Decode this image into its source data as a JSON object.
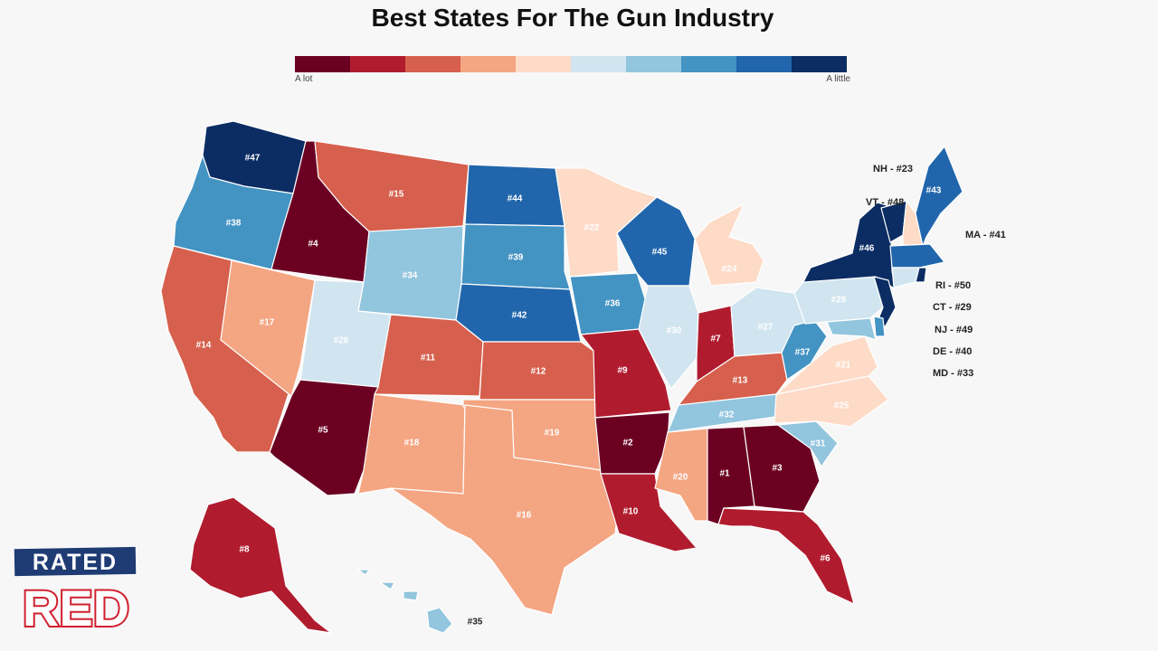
{
  "title": "Best States For The Gun Industry",
  "legend": {
    "low_label": "A lot",
    "high_label": "A little",
    "colors": [
      "#6b0023",
      "#b01c2e",
      "#d6604d",
      "#f4a582",
      "#fddbc7",
      "#d1e5f0",
      "#92c5de",
      "#4393c3",
      "#2166ac",
      "#0c2d63"
    ]
  },
  "states": [
    {
      "id": "WA",
      "rank": "#47",
      "color": "#0c2d63"
    },
    {
      "id": "OR",
      "rank": "#38",
      "color": "#4393c3"
    },
    {
      "id": "CA",
      "rank": "#14",
      "color": "#d6604d"
    },
    {
      "id": "ID",
      "rank": "#4",
      "color": "#6b0023"
    },
    {
      "id": "NV",
      "rank": "#17",
      "color": "#f4a582"
    },
    {
      "id": "MT",
      "rank": "#15",
      "color": "#d6604d"
    },
    {
      "id": "WY",
      "rank": "#34",
      "color": "#92c5de"
    },
    {
      "id": "UT",
      "rank": "#26",
      "color": "#d1e5f0"
    },
    {
      "id": "AZ",
      "rank": "#5",
      "color": "#6b0023"
    },
    {
      "id": "CO",
      "rank": "#11",
      "color": "#d6604d"
    },
    {
      "id": "NM",
      "rank": "#18",
      "color": "#f4a582"
    },
    {
      "id": "ND",
      "rank": "#44",
      "color": "#2166ac"
    },
    {
      "id": "SD",
      "rank": "#39",
      "color": "#4393c3"
    },
    {
      "id": "NE",
      "rank": "#42",
      "color": "#2166ac"
    },
    {
      "id": "KS",
      "rank": "#12",
      "color": "#d6604d"
    },
    {
      "id": "OK",
      "rank": "#19",
      "color": "#f4a582"
    },
    {
      "id": "TX",
      "rank": "#16",
      "color": "#f4a582"
    },
    {
      "id": "MN",
      "rank": "#22",
      "color": "#fddbc7"
    },
    {
      "id": "IA",
      "rank": "#36",
      "color": "#4393c3"
    },
    {
      "id": "MO",
      "rank": "#9",
      "color": "#b01c2e"
    },
    {
      "id": "AR",
      "rank": "#2",
      "color": "#6b0023"
    },
    {
      "id": "LA",
      "rank": "#10",
      "color": "#b01c2e"
    },
    {
      "id": "WI",
      "rank": "#45",
      "color": "#2166ac"
    },
    {
      "id": "IL",
      "rank": "#30",
      "color": "#d1e5f0"
    },
    {
      "id": "MI",
      "rank": "#24",
      "color": "#fddbc7"
    },
    {
      "id": "IN",
      "rank": "#7",
      "color": "#b01c2e"
    },
    {
      "id": "OH",
      "rank": "#27",
      "color": "#d1e5f0"
    },
    {
      "id": "KY",
      "rank": "#13",
      "color": "#d6604d"
    },
    {
      "id": "TN",
      "rank": "#32",
      "color": "#92c5de"
    },
    {
      "id": "MS",
      "rank": "#20",
      "color": "#f4a582"
    },
    {
      "id": "AL",
      "rank": "#1",
      "color": "#6b0023"
    },
    {
      "id": "GA",
      "rank": "#3",
      "color": "#6b0023"
    },
    {
      "id": "FL",
      "rank": "#6",
      "color": "#b01c2e"
    },
    {
      "id": "SC",
      "rank": "#31",
      "color": "#92c5de"
    },
    {
      "id": "NC",
      "rank": "#25",
      "color": "#fddbc7"
    },
    {
      "id": "VA",
      "rank": "#21",
      "color": "#fddbc7"
    },
    {
      "id": "WV",
      "rank": "#37",
      "color": "#4393c3"
    },
    {
      "id": "PA",
      "rank": "#28",
      "color": "#d1e5f0"
    },
    {
      "id": "NY",
      "rank": "#46",
      "color": "#0c2d63"
    },
    {
      "id": "VT",
      "rank": "",
      "color": "#0c2d63"
    },
    {
      "id": "NH",
      "rank": "",
      "color": "#fddbc7"
    },
    {
      "id": "ME",
      "rank": "#43",
      "color": "#2166ac"
    },
    {
      "id": "MA",
      "rank": "",
      "color": "#2166ac"
    },
    {
      "id": "CT",
      "rank": "",
      "color": "#d1e5f0"
    },
    {
      "id": "RI",
      "rank": "",
      "color": "#0c2d63"
    },
    {
      "id": "NJ",
      "rank": "",
      "color": "#0c2d63"
    },
    {
      "id": "DE",
      "rank": "",
      "color": "#4393c3"
    },
    {
      "id": "MD",
      "rank": "",
      "color": "#92c5de"
    },
    {
      "id": "AK",
      "rank": "#8",
      "color": "#b01c2e"
    },
    {
      "id": "HI",
      "rank": "#35",
      "color": "#92c5de"
    }
  ],
  "callouts": [
    {
      "id": "NH",
      "text": "NH - #23"
    },
    {
      "id": "VT",
      "text": "VT - #48"
    },
    {
      "id": "MA",
      "text": "MA - #41"
    },
    {
      "id": "RI",
      "text": "RI - #50"
    },
    {
      "id": "CT",
      "text": "CT - #29"
    },
    {
      "id": "NJ",
      "text": "NJ - #49"
    },
    {
      "id": "DE",
      "text": "DE - #40"
    },
    {
      "id": "MD",
      "text": "MD - #33"
    }
  ],
  "logo": {
    "line1": "RATED",
    "line2": "RED",
    "color": "#d11f2f",
    "accent": "#1f3b73"
  }
}
